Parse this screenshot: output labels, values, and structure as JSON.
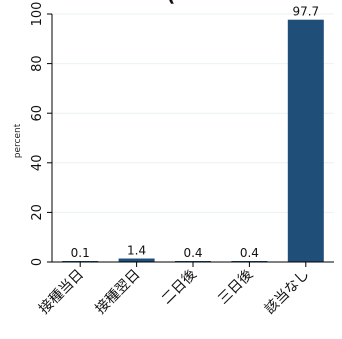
{
  "chart_data": {
    "type": "bar",
    "title": "(Partially visible title, cropped at top)",
    "title_visible_fragment": "(",
    "ylabel": "percent",
    "xlabel": "",
    "categories": [
      "接種当日",
      "接種翌日",
      "二日後",
      "三日後",
      "該当なし"
    ],
    "values": [
      0.1,
      1.4,
      0.4,
      0.4,
      97.7
    ],
    "value_labels": [
      "0.1",
      "1.4",
      "0.4",
      "0.4",
      "97.7"
    ],
    "ylim": [
      0,
      100
    ],
    "yticks": [
      0,
      20,
      40,
      60,
      80,
      100
    ],
    "ytick_labels": [
      "0",
      "20",
      "40",
      "60",
      "80",
      "100"
    ],
    "grid": true,
    "legend": "none",
    "bar_color": "#1f4e79",
    "grid_color": "#eaf2f3",
    "axis_color": "#000000"
  }
}
